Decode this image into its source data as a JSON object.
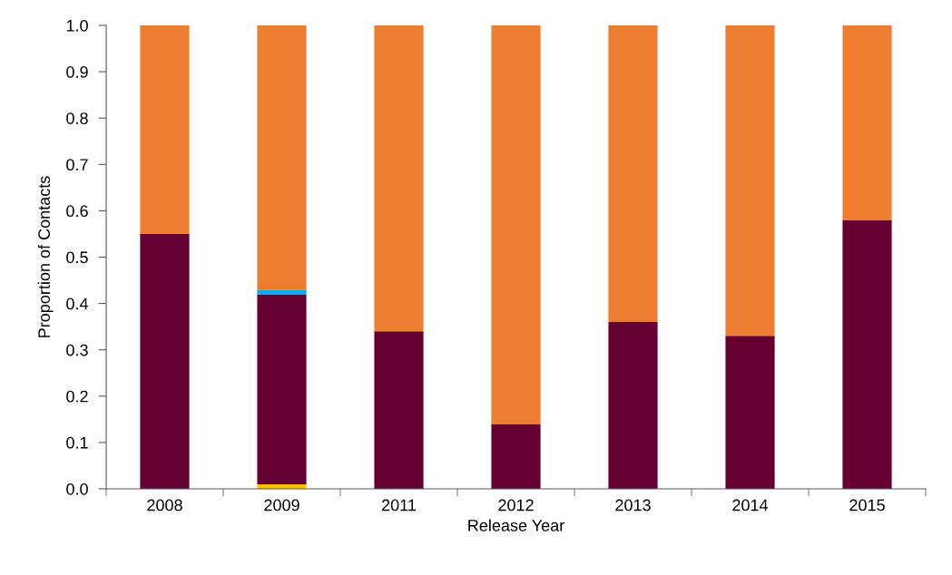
{
  "chart_data": {
    "type": "bar",
    "stacked": true,
    "xlabel": "Release Year",
    "ylabel": "Proportion of Contacts",
    "categories": [
      "2008",
      "2009",
      "2011",
      "2012",
      "2013",
      "2014",
      "2015"
    ],
    "series": [
      {
        "color": "#ffc000",
        "values": [
          0,
          0.01,
          0,
          0,
          0,
          0,
          0
        ]
      },
      {
        "color": "#660033",
        "values": [
          0.55,
          0.41,
          0.34,
          0.14,
          0.36,
          0.33,
          0.58
        ]
      },
      {
        "color": "#00b0f0",
        "values": [
          0,
          0.01,
          0,
          0,
          0,
          0,
          0
        ]
      },
      {
        "color": "#ed7d31",
        "values": [
          0.45,
          0.57,
          0.66,
          0.86,
          0.64,
          0.67,
          0.42
        ]
      }
    ],
    "ylim": [
      0,
      1.0
    ],
    "yticks": [
      {
        "value": 0,
        "label": "0.0"
      },
      {
        "value": 0.1,
        "label": "0.1"
      },
      {
        "value": 0.2,
        "label": "0.2"
      },
      {
        "value": 0.3,
        "label": "0.3"
      },
      {
        "value": 0.4,
        "label": "0.4"
      },
      {
        "value": 0.5,
        "label": "0.5"
      },
      {
        "value": 0.6,
        "label": "0.6"
      },
      {
        "value": 0.7,
        "label": "0.7"
      },
      {
        "value": 0.8,
        "label": "0.8"
      },
      {
        "value": 0.9,
        "label": "0.9"
      },
      {
        "value": 1.0,
        "label": "1.0"
      }
    ],
    "grid": false
  }
}
